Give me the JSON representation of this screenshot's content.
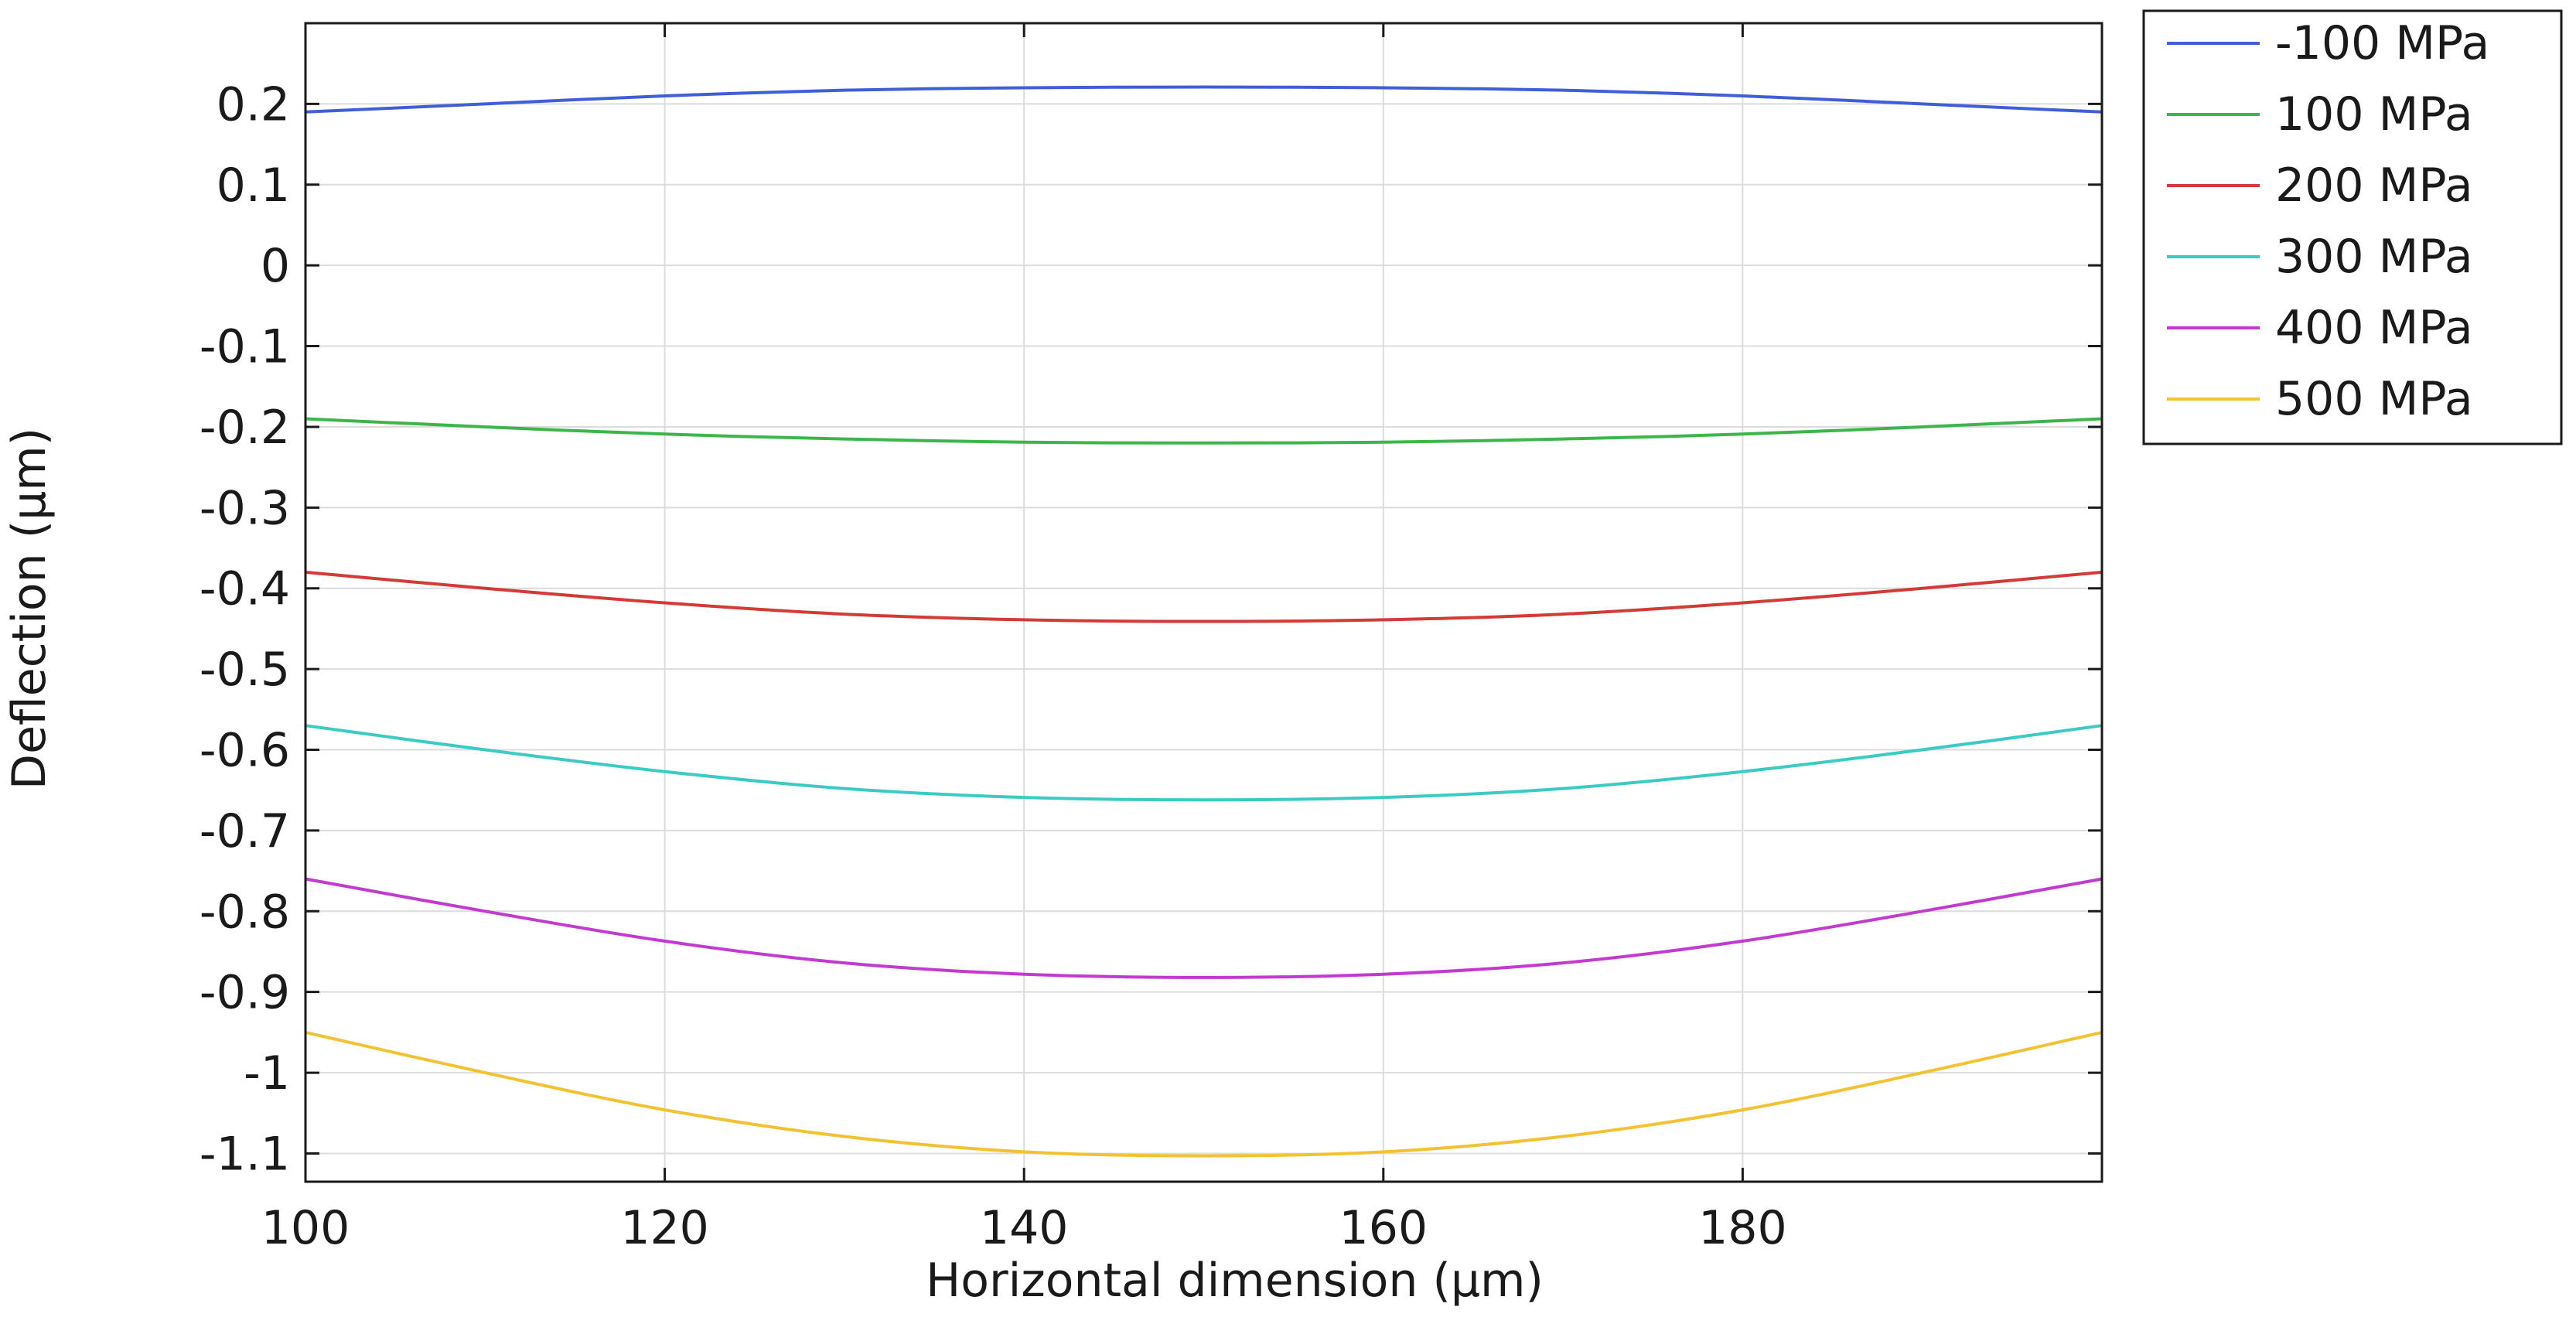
{
  "chart_data": {
    "type": "line",
    "title": "",
    "xlabel": "Horizontal dimension (µm)",
    "ylabel": "Deflection (µm)",
    "xlim": [
      100,
      200
    ],
    "ylim": [
      -1.135,
      0.3
    ],
    "grid": true,
    "legend_position": "outside-top-right",
    "x_ticks": [
      100,
      120,
      140,
      160,
      180
    ],
    "x_tick_labels": [
      "100",
      "120",
      "140",
      "160",
      "180"
    ],
    "y_ticks": [
      0.2,
      0.1,
      0,
      -0.1,
      -0.2,
      -0.3,
      -0.4,
      -0.5,
      -0.6,
      -0.7,
      -0.8,
      -0.9,
      -1,
      -1.1
    ],
    "y_tick_labels": [
      "0.2",
      "0.1",
      "0",
      "-0.1",
      "-0.2",
      "-0.3",
      "-0.4",
      "-0.5",
      "-0.6",
      "-0.7",
      "-0.8",
      "-0.9",
      "-1",
      "-1.1"
    ],
    "x": [
      100,
      110,
      120,
      130,
      140,
      150,
      160,
      170,
      180,
      190,
      200
    ],
    "series": [
      {
        "name": "-100 MPa",
        "color": "#3f5fd8",
        "values": [
          0.19,
          0.2,
          0.21,
          0.217,
          0.22,
          0.221,
          0.22,
          0.217,
          0.21,
          0.2,
          0.19
        ]
      },
      {
        "name": "100 MPa",
        "color": "#3cb54a",
        "values": [
          -0.19,
          -0.2,
          -0.209,
          -0.215,
          -0.219,
          -0.22,
          -0.219,
          -0.215,
          -0.209,
          -0.2,
          -0.19
        ]
      },
      {
        "name": "200 MPa",
        "color": "#d23b36",
        "values": [
          -0.38,
          -0.4,
          -0.418,
          -0.432,
          -0.439,
          -0.441,
          -0.439,
          -0.432,
          -0.418,
          -0.4,
          -0.38
        ]
      },
      {
        "name": "300 MPa",
        "color": "#3ccbc4",
        "values": [
          -0.57,
          -0.6,
          -0.627,
          -0.648,
          -0.659,
          -0.662,
          -0.659,
          -0.648,
          -0.627,
          -0.6,
          -0.57
        ]
      },
      {
        "name": "400 MPa",
        "color": "#c23ad0",
        "values": [
          -0.76,
          -0.8,
          -0.837,
          -0.864,
          -0.878,
          -0.882,
          -0.878,
          -0.864,
          -0.837,
          -0.8,
          -0.76
        ]
      },
      {
        "name": "500 MPa",
        "color": "#f2c230",
        "values": [
          -0.95,
          -1.0,
          -1.046,
          -1.079,
          -1.098,
          -1.103,
          -1.098,
          -1.079,
          -1.046,
          -1.0,
          -0.95
        ]
      }
    ]
  }
}
